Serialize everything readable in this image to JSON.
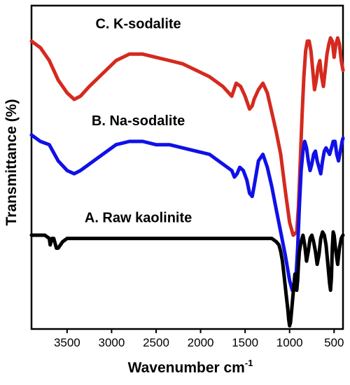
{
  "chart_data": {
    "type": "line",
    "xlabel": "Wavenumber cm",
    "xlabel_superscript": "-1",
    "ylabel": "Transmittance (%)",
    "x_reversed": true,
    "xlim": [
      3900,
      400
    ],
    "ylim": [
      0,
      100
    ],
    "x_ticks": [
      3500,
      3000,
      2500,
      2000,
      1500,
      1000,
      500
    ],
    "y_ticks_shown": false,
    "grid": false,
    "legend": "none",
    "series": [
      {
        "name": "C. K-sodalite",
        "color": "#d42a1f",
        "x": [
          3900,
          3800,
          3700,
          3600,
          3500,
          3420,
          3350,
          3250,
          3100,
          2950,
          2800,
          2650,
          2500,
          2350,
          2200,
          2050,
          1900,
          1750,
          1650,
          1600,
          1550,
          1500,
          1450,
          1420,
          1400,
          1350,
          1300,
          1250,
          1200,
          1150,
          1100,
          1050,
          1000,
          960,
          920,
          900,
          880,
          860,
          840,
          820,
          800,
          780,
          760,
          740,
          720,
          700,
          680,
          660,
          640,
          620,
          600,
          580,
          560,
          540,
          520,
          500,
          480,
          460,
          440,
          420,
          400
        ],
        "y": [
          89,
          87,
          83,
          77,
          73,
          71,
          72,
          75,
          79,
          83,
          85,
          85,
          84,
          83,
          82,
          80,
          78,
          75,
          72,
          76,
          75,
          72,
          68,
          69,
          71,
          74,
          76,
          73,
          67,
          61,
          54,
          43,
          33,
          29,
          30,
          38,
          52,
          66,
          78,
          86,
          89,
          89,
          86,
          80,
          74,
          77,
          81,
          83,
          78,
          75,
          80,
          85,
          88,
          90,
          89,
          84,
          88,
          90,
          88,
          83,
          80
        ]
      },
      {
        "name": "B. Na-sodalite",
        "color": "#1010e8",
        "x": [
          3900,
          3800,
          3700,
          3600,
          3500,
          3420,
          3350,
          3250,
          3100,
          2950,
          2800,
          2650,
          2500,
          2350,
          2200,
          2050,
          1900,
          1750,
          1650,
          1620,
          1590,
          1560,
          1520,
          1480,
          1450,
          1420,
          1400,
          1350,
          1300,
          1250,
          1200,
          1150,
          1100,
          1050,
          1000,
          970,
          950,
          930,
          910,
          890,
          870,
          850,
          830,
          810,
          790,
          770,
          750,
          730,
          710,
          690,
          670,
          650,
          630,
          610,
          590,
          570,
          550,
          530,
          510,
          490,
          470,
          450,
          430,
          410,
          400
        ],
        "y": [
          60,
          58,
          57,
          52,
          49,
          48,
          49,
          51,
          54,
          57,
          58,
          58,
          57,
          57,
          56,
          55,
          54,
          51,
          49,
          47,
          48,
          50,
          49,
          46,
          42,
          41,
          44,
          52,
          54,
          50,
          44,
          37,
          30,
          23,
          15,
          12,
          12,
          15,
          25,
          38,
          49,
          55,
          58,
          56,
          52,
          49,
          51,
          54,
          55,
          52,
          50,
          48,
          52,
          55,
          56,
          55,
          54,
          56,
          58,
          58,
          54,
          52,
          55,
          58,
          59
        ]
      },
      {
        "name": "A. Raw kaolinite",
        "color": "#000000",
        "x": [
          3900,
          3800,
          3750,
          3700,
          3690,
          3670,
          3650,
          3620,
          3600,
          3550,
          3500,
          3400,
          3200,
          3000,
          2800,
          2600,
          2400,
          2200,
          2000,
          1800,
          1600,
          1400,
          1200,
          1150,
          1120,
          1100,
          1080,
          1060,
          1040,
          1020,
          1010,
          1000,
          990,
          980,
          960,
          940,
          930,
          920,
          910,
          900,
          890,
          870,
          850,
          830,
          810,
          790,
          770,
          750,
          730,
          710,
          690,
          670,
          650,
          630,
          610,
          590,
          570,
          550,
          540,
          530,
          520,
          510,
          500,
          480,
          460,
          440,
          420,
          400
        ],
        "y": [
          29,
          29,
          29,
          28,
          26,
          28,
          28,
          25,
          25,
          27,
          28,
          28,
          28,
          28,
          28,
          28,
          28,
          28,
          28,
          28,
          28,
          28,
          28,
          27,
          26,
          24,
          21,
          16,
          11,
          6,
          3,
          1,
          2,
          5,
          11,
          17,
          14,
          12,
          15,
          20,
          24,
          27,
          29,
          26,
          21,
          24,
          28,
          29,
          27,
          24,
          20,
          23,
          28,
          30,
          29,
          26,
          20,
          14,
          12,
          16,
          25,
          30,
          29,
          24,
          20,
          25,
          28,
          29
        ]
      }
    ],
    "annotations": [
      {
        "text": "C. K-sodalite",
        "x": 2700,
        "y": 93
      },
      {
        "text": "B. Na-sodalite",
        "x": 2700,
        "y": 63
      },
      {
        "text": "A. Raw kaolinite",
        "x": 2700,
        "y": 33
      }
    ]
  }
}
